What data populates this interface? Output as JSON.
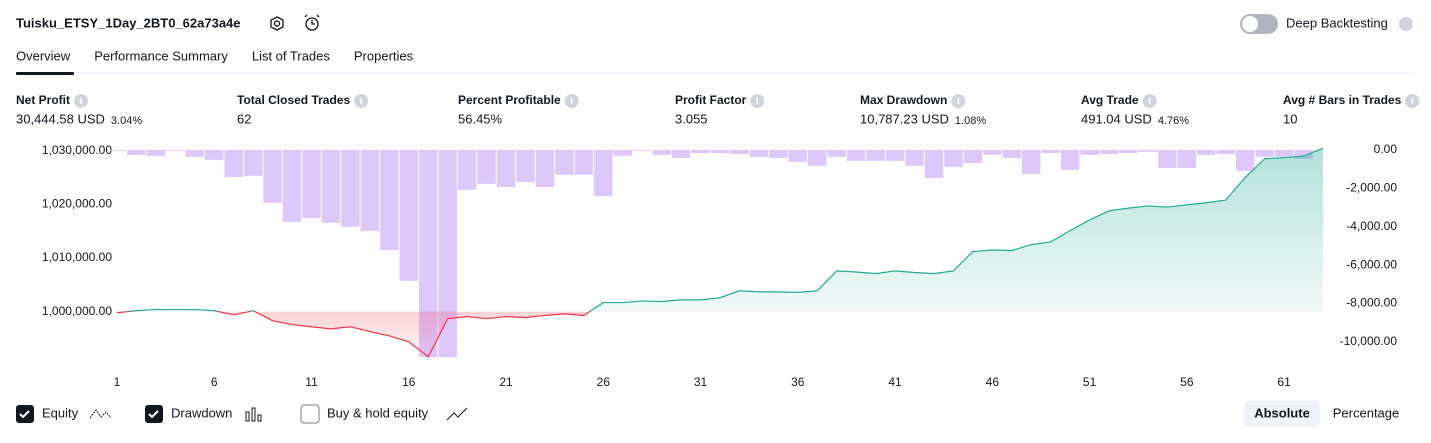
{
  "header": {
    "title": "Tuisku_ETSY_1Day_2BT0_62a73a4e",
    "toggle": "Deep Backtesting"
  },
  "tabs": [
    "Overview",
    "Performance Summary",
    "List of Trades",
    "Properties"
  ],
  "metrics": [
    {
      "label": "Net Profit",
      "value": "30,444.58 USD",
      "percent": "3.04%",
      "color": "#089981"
    },
    {
      "label": "Total Closed Trades",
      "value": "62",
      "color": "#131722"
    },
    {
      "label": "Percent Profitable",
      "value": "56.45%",
      "color": "#089981"
    },
    {
      "label": "Profit Factor",
      "value": "3.055",
      "color": "#089981"
    },
    {
      "label": "Max Drawdown",
      "value": "10,787.23 USD",
      "percent": "1.08%",
      "color": "#f23645"
    },
    {
      "label": "Avg Trade",
      "value": "491.04 USD",
      "percent": "4.76%",
      "color": "#089981"
    },
    {
      "label": "Avg # Bars in Trades",
      "value": "10",
      "color": "#131722"
    }
  ],
  "chart_data": {
    "type": "line",
    "xlim": [
      1,
      63
    ],
    "xticks": [
      1,
      6,
      11,
      16,
      21,
      26,
      31,
      36,
      41,
      46,
      51,
      56,
      61
    ],
    "ylim": [
      991000,
      1030500
    ],
    "yticks": [
      {
        "value": 1000000,
        "label": "1,000,000.00"
      },
      {
        "value": 1010000,
        "label": "1,010,000.00"
      },
      {
        "value": 1020000,
        "label": "1,020,000.00"
      },
      {
        "value": 1030000,
        "label": "1,030,000.00"
      }
    ],
    "y2lim": [
      -10940,
      100
    ],
    "y2ticks": [
      {
        "value": 0,
        "label": "0.00"
      },
      {
        "value": -2000,
        "label": "-2,000.00"
      },
      {
        "value": -4000,
        "label": "-4,000.00"
      },
      {
        "value": -6000,
        "label": "-6,000.00"
      },
      {
        "value": -8000,
        "label": "-8,000.00"
      },
      {
        "value": -10000,
        "label": "-10,000.00"
      }
    ],
    "series": [
      {
        "name": "Equity",
        "color": "#22ab94",
        "negative_color": "#f23645",
        "x": [
          1,
          2,
          3,
          4,
          5,
          6,
          7,
          8,
          9,
          10,
          11,
          12,
          13,
          14,
          15,
          16,
          17,
          18,
          19,
          20,
          21,
          22,
          23,
          24,
          25,
          26,
          27,
          28,
          29,
          30,
          31,
          32,
          33,
          34,
          35,
          36,
          37,
          38,
          39,
          40,
          41,
          42,
          43,
          44,
          45,
          46,
          47,
          48,
          49,
          50,
          51,
          52,
          53,
          54,
          55,
          56,
          57,
          58,
          59,
          60,
          61,
          62,
          63
        ],
        "values": [
          999800,
          1000200,
          1000400,
          1000400,
          1000400,
          1000200,
          999400,
          1000200,
          998300,
          997600,
          997200,
          996800,
          997200,
          996300,
          995500,
          994400,
          991600,
          998700,
          999100,
          998700,
          999100,
          998900,
          999300,
          999600,
          999300,
          1001700,
          1001700,
          1002000,
          1001900,
          1002200,
          1002200,
          1002600,
          1003900,
          1003700,
          1003700,
          1003600,
          1003900,
          1007600,
          1007400,
          1007100,
          1007600,
          1007300,
          1007100,
          1007600,
          1011200,
          1011500,
          1011400,
          1012500,
          1013000,
          1015100,
          1017100,
          1018800,
          1019300,
          1019700,
          1019500,
          1019900,
          1020300,
          1020800,
          1025000,
          1028500,
          1028700,
          1029000,
          1030444.58
        ]
      },
      {
        "name": "Drawdown",
        "color": "#d8bdfa",
        "axis": "y2",
        "x": [
          1,
          2,
          3,
          4,
          5,
          6,
          7,
          8,
          9,
          10,
          11,
          12,
          13,
          14,
          15,
          16,
          17,
          18,
          19,
          20,
          21,
          22,
          23,
          24,
          25,
          26,
          27,
          28,
          29,
          30,
          31,
          32,
          33,
          34,
          35,
          36,
          37,
          38,
          39,
          40,
          41,
          42,
          43,
          44,
          45,
          46,
          47,
          48,
          49,
          50,
          51,
          52,
          53,
          54,
          55,
          56,
          57,
          58,
          59,
          60,
          61,
          62
        ],
        "values": [
          -50,
          -260,
          -310,
          -50,
          -360,
          -520,
          -1410,
          -1350,
          -2760,
          -3750,
          -3540,
          -3800,
          -4010,
          -4220,
          -5210,
          -6820,
          -10787.23,
          -10790,
          -2080,
          -1770,
          -1930,
          -1670,
          -1930,
          -1300,
          -1300,
          -2400,
          -310,
          -50,
          -260,
          -420,
          -160,
          -160,
          -210,
          -360,
          -420,
          -620,
          -830,
          -360,
          -570,
          -570,
          -570,
          -830,
          -1460,
          -890,
          -680,
          -260,
          -420,
          -1250,
          -160,
          -1040,
          -260,
          -210,
          -160,
          -100,
          -940,
          -940,
          -260,
          -210,
          -1090,
          -360,
          -360,
          -470
        ]
      }
    ]
  },
  "footer": {
    "buy_hold": "Buy & hold equity",
    "modes": [
      "Absolute",
      "Percentage"
    ]
  }
}
